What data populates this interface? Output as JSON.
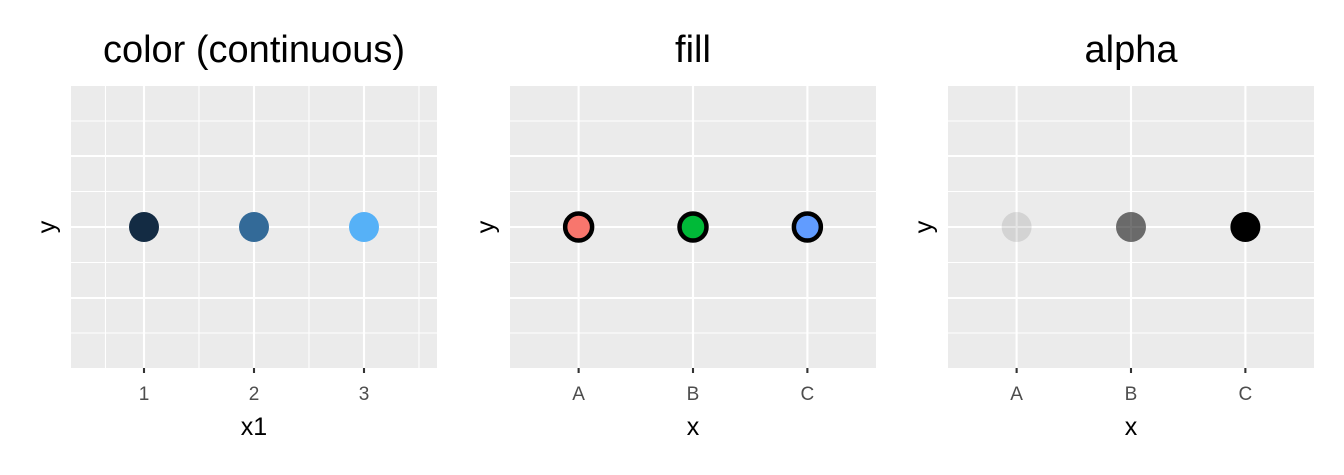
{
  "chart_data": [
    {
      "type": "scatter",
      "title": "color (continuous)",
      "xlabel": "x1",
      "ylabel": "y",
      "x_axis": "continuous",
      "xlim": [
        0.5,
        3.5
      ],
      "x_ticks": [
        "1",
        "2",
        "3"
      ],
      "x_minor_breaks": [
        0.65,
        1.5,
        2.5,
        3.5
      ],
      "grid": true,
      "points": [
        {
          "x": 1,
          "y": 0,
          "color": "#132B43"
        },
        {
          "x": 2,
          "y": 0,
          "color": "#336A98"
        },
        {
          "x": 3,
          "y": 0,
          "color": "#56B1F7"
        }
      ]
    },
    {
      "type": "scatter",
      "title": "fill",
      "xlabel": "x",
      "ylabel": "y",
      "x_axis": "discrete",
      "categories": [
        "A",
        "B",
        "C"
      ],
      "grid": true,
      "points": [
        {
          "x": "A",
          "y": 0,
          "fill": "#F8766D",
          "stroke": "#000000"
        },
        {
          "x": "B",
          "y": 0,
          "fill": "#00BA38",
          "stroke": "#000000"
        },
        {
          "x": "C",
          "y": 0,
          "fill": "#619CFF",
          "stroke": "#000000"
        }
      ]
    },
    {
      "type": "scatter",
      "title": "alpha",
      "xlabel": "x",
      "ylabel": "y",
      "x_axis": "discrete",
      "categories": [
        "A",
        "B",
        "C"
      ],
      "grid": true,
      "points": [
        {
          "x": "A",
          "y": 0,
          "color": "#000000",
          "alpha": 0.1
        },
        {
          "x": "B",
          "y": 0,
          "color": "#000000",
          "alpha": 0.55
        },
        {
          "x": "C",
          "y": 0,
          "color": "#000000",
          "alpha": 1.0
        }
      ]
    }
  ],
  "colors": {
    "panel_background": "#ebebeb",
    "grid": "#ffffff",
    "tick_label": "#4d4d4d",
    "text": "#000000"
  }
}
